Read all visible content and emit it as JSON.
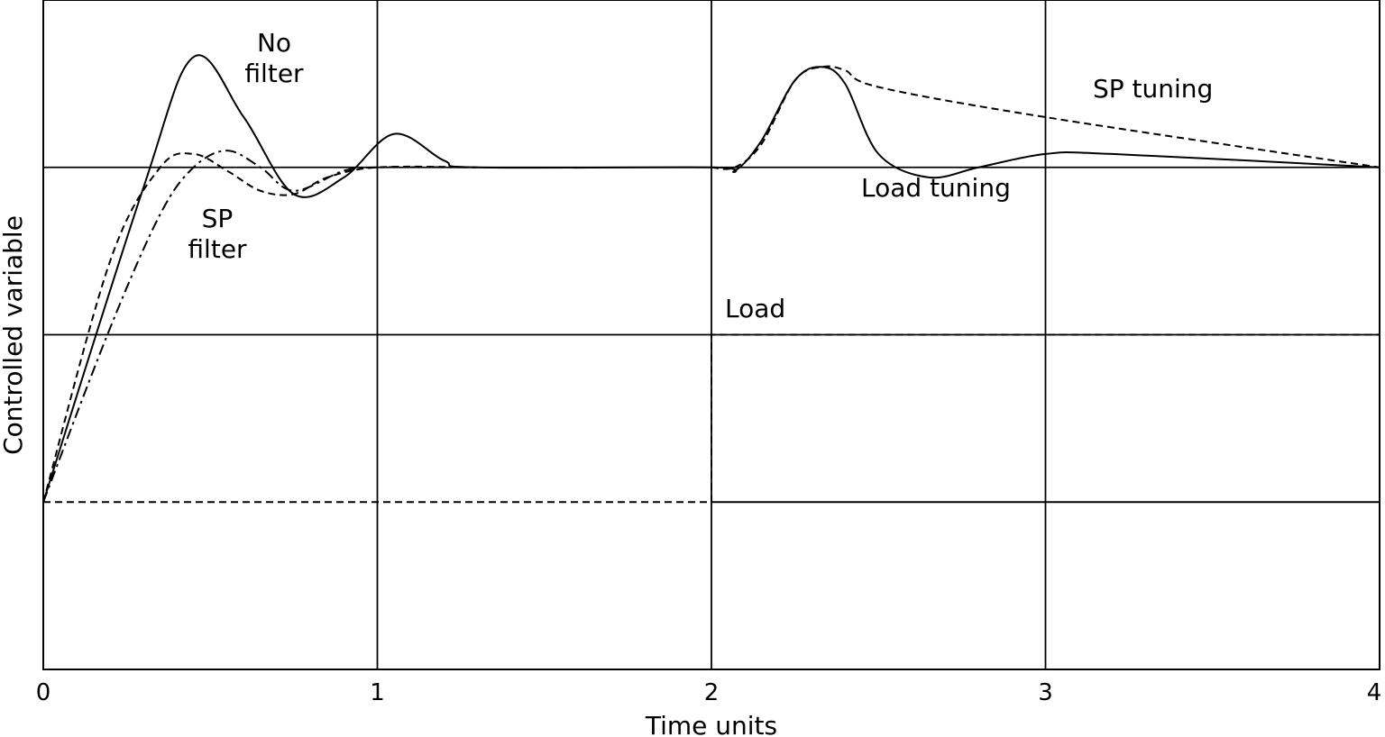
{
  "chart_data": {
    "type": "line",
    "xlabel": "Time units",
    "ylabel": "Controlled variable",
    "xlim": [
      0,
      4
    ],
    "ylim": [
      -0.5,
      1.5
    ],
    "x_ticks": [
      "0",
      "1",
      "2",
      "3",
      "4"
    ],
    "y_gridlines": [
      0,
      0.5,
      1.0
    ],
    "grid": true,
    "annotations": [
      {
        "id": "no-filter",
        "lines": [
          "No",
          "filter"
        ]
      },
      {
        "id": "sp-filter",
        "lines": [
          "SP",
          "filter"
        ]
      },
      {
        "id": "load",
        "lines": [
          "Load"
        ]
      },
      {
        "id": "sp-tuning",
        "lines": [
          "SP tuning"
        ]
      },
      {
        "id": "load-tuning",
        "lines": [
          "Load tuning"
        ]
      }
    ],
    "series": [
      {
        "style": "solid",
        "x": [
          0,
          0.3,
          0.45,
          0.6,
          0.75,
          0.9,
          1.05,
          1.2,
          1.3,
          2.0,
          2.07,
          2.15,
          2.25,
          2.33,
          2.4,
          2.5,
          2.65,
          2.8,
          3.0,
          3.2,
          4.0
        ],
        "y": [
          0,
          0.94,
          1.33,
          1.15,
          0.92,
          0.97,
          1.1,
          1.02,
          1.0,
          1.0,
          0.99,
          1.08,
          1.26,
          1.3,
          1.25,
          1.04,
          0.97,
          1.0,
          1.04,
          1.04,
          1.0
        ]
      },
      {
        "style": "dashed",
        "x": [
          0,
          0.2,
          0.35,
          0.45,
          0.55,
          0.65,
          0.75,
          0.85,
          1.0,
          1.3
        ],
        "y": [
          0,
          0.72,
          1.0,
          1.04,
          0.99,
          0.93,
          0.92,
          0.97,
          1.0,
          1.0
        ]
      },
      {
        "style": "dashdot",
        "x": [
          0,
          0.2,
          0.35,
          0.45,
          0.55,
          0.65,
          0.75,
          0.9,
          1.0,
          1.3
        ],
        "y": [
          0,
          0.52,
          0.86,
          1.0,
          1.05,
          1.0,
          0.93,
          0.99,
          1.0,
          1.0
        ]
      },
      {
        "style": "dashed",
        "x": [
          2.0,
          2.07,
          2.15,
          2.25,
          2.33,
          2.4,
          2.5,
          3.0,
          4.0
        ],
        "y": [
          1.0,
          1.0,
          1.07,
          1.26,
          1.3,
          1.29,
          1.24,
          1.15,
          1.0
        ]
      },
      {
        "style": "dashed",
        "x": [
          0,
          2.0,
          2.0,
          4.0
        ],
        "y": [
          0,
          0,
          0.5,
          0.5
        ]
      }
    ],
    "segments": [
      {
        "style": "solid",
        "x": [
          2.0,
          4.0
        ],
        "y": [
          0,
          0
        ]
      }
    ]
  }
}
